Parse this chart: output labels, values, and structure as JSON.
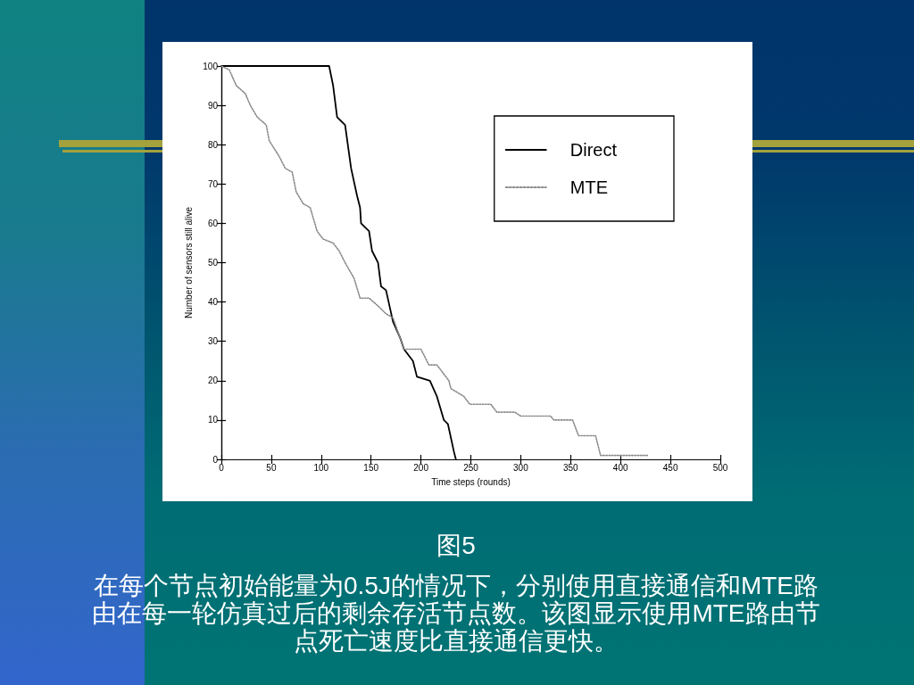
{
  "chart_data": {
    "type": "line",
    "xlabel": "Time steps (rounds)",
    "ylabel": "Number of sensors still alive",
    "annotations": [
      "图5",
      "在每个节点初始能量为0.5J的情况下，分别使用直接通信和MTE路由在每一轮仿真过后的剩余存活节点数。该图显示使用MTE路由节点死亡速度比直接通信更快。"
    ],
    "xlim": [
      0,
      500
    ],
    "xticks": [
      0,
      50,
      100,
      150,
      200,
      250,
      300,
      350,
      400,
      450,
      500
    ],
    "ylim": [
      0,
      100
    ],
    "yticks": [
      0,
      10,
      20,
      30,
      40,
      50,
      60,
      70,
      80,
      90,
      100
    ],
    "legend": "top right",
    "series": [
      {
        "name": "Direct",
        "color": "#000000",
        "line_style": "solid",
        "x": [
          0,
          108,
          112,
          116,
          120,
          124,
          130,
          136,
          139,
          140,
          148,
          151,
          157,
          160,
          165,
          172,
          179,
          183,
          192,
          196,
          209,
          216,
          223,
          227,
          233,
          235
        ],
        "values": [
          100,
          100,
          95,
          87,
          86,
          85,
          74,
          67,
          64,
          60,
          58,
          53,
          50,
          44,
          43,
          35,
          31,
          28,
          25,
          21,
          20,
          16,
          10,
          9,
          2,
          0
        ]
      },
      {
        "name": "MTE",
        "color": "#8c8c8c",
        "line_style": "dotted",
        "x": [
          0,
          8,
          15,
          24,
          29,
          36,
          45,
          48,
          58,
          64,
          71,
          75,
          82,
          89,
          96,
          102,
          112,
          118,
          124,
          133,
          139,
          148,
          157,
          165,
          172,
          183,
          200,
          208,
          216,
          228,
          230,
          243,
          249,
          270,
          276,
          294,
          300,
          330,
          333,
          352,
          358,
          375,
          380,
          428
        ],
        "values": [
          100,
          99,
          95,
          93,
          90,
          87,
          85,
          81,
          77,
          74,
          73,
          68,
          65,
          64,
          58,
          56,
          55,
          53,
          50,
          46,
          41,
          41,
          39,
          37,
          36,
          28,
          28,
          24,
          24,
          20,
          18,
          16,
          14,
          14,
          12,
          12,
          11,
          11,
          10,
          10,
          6,
          6,
          1,
          1
        ]
      }
    ]
  }
}
